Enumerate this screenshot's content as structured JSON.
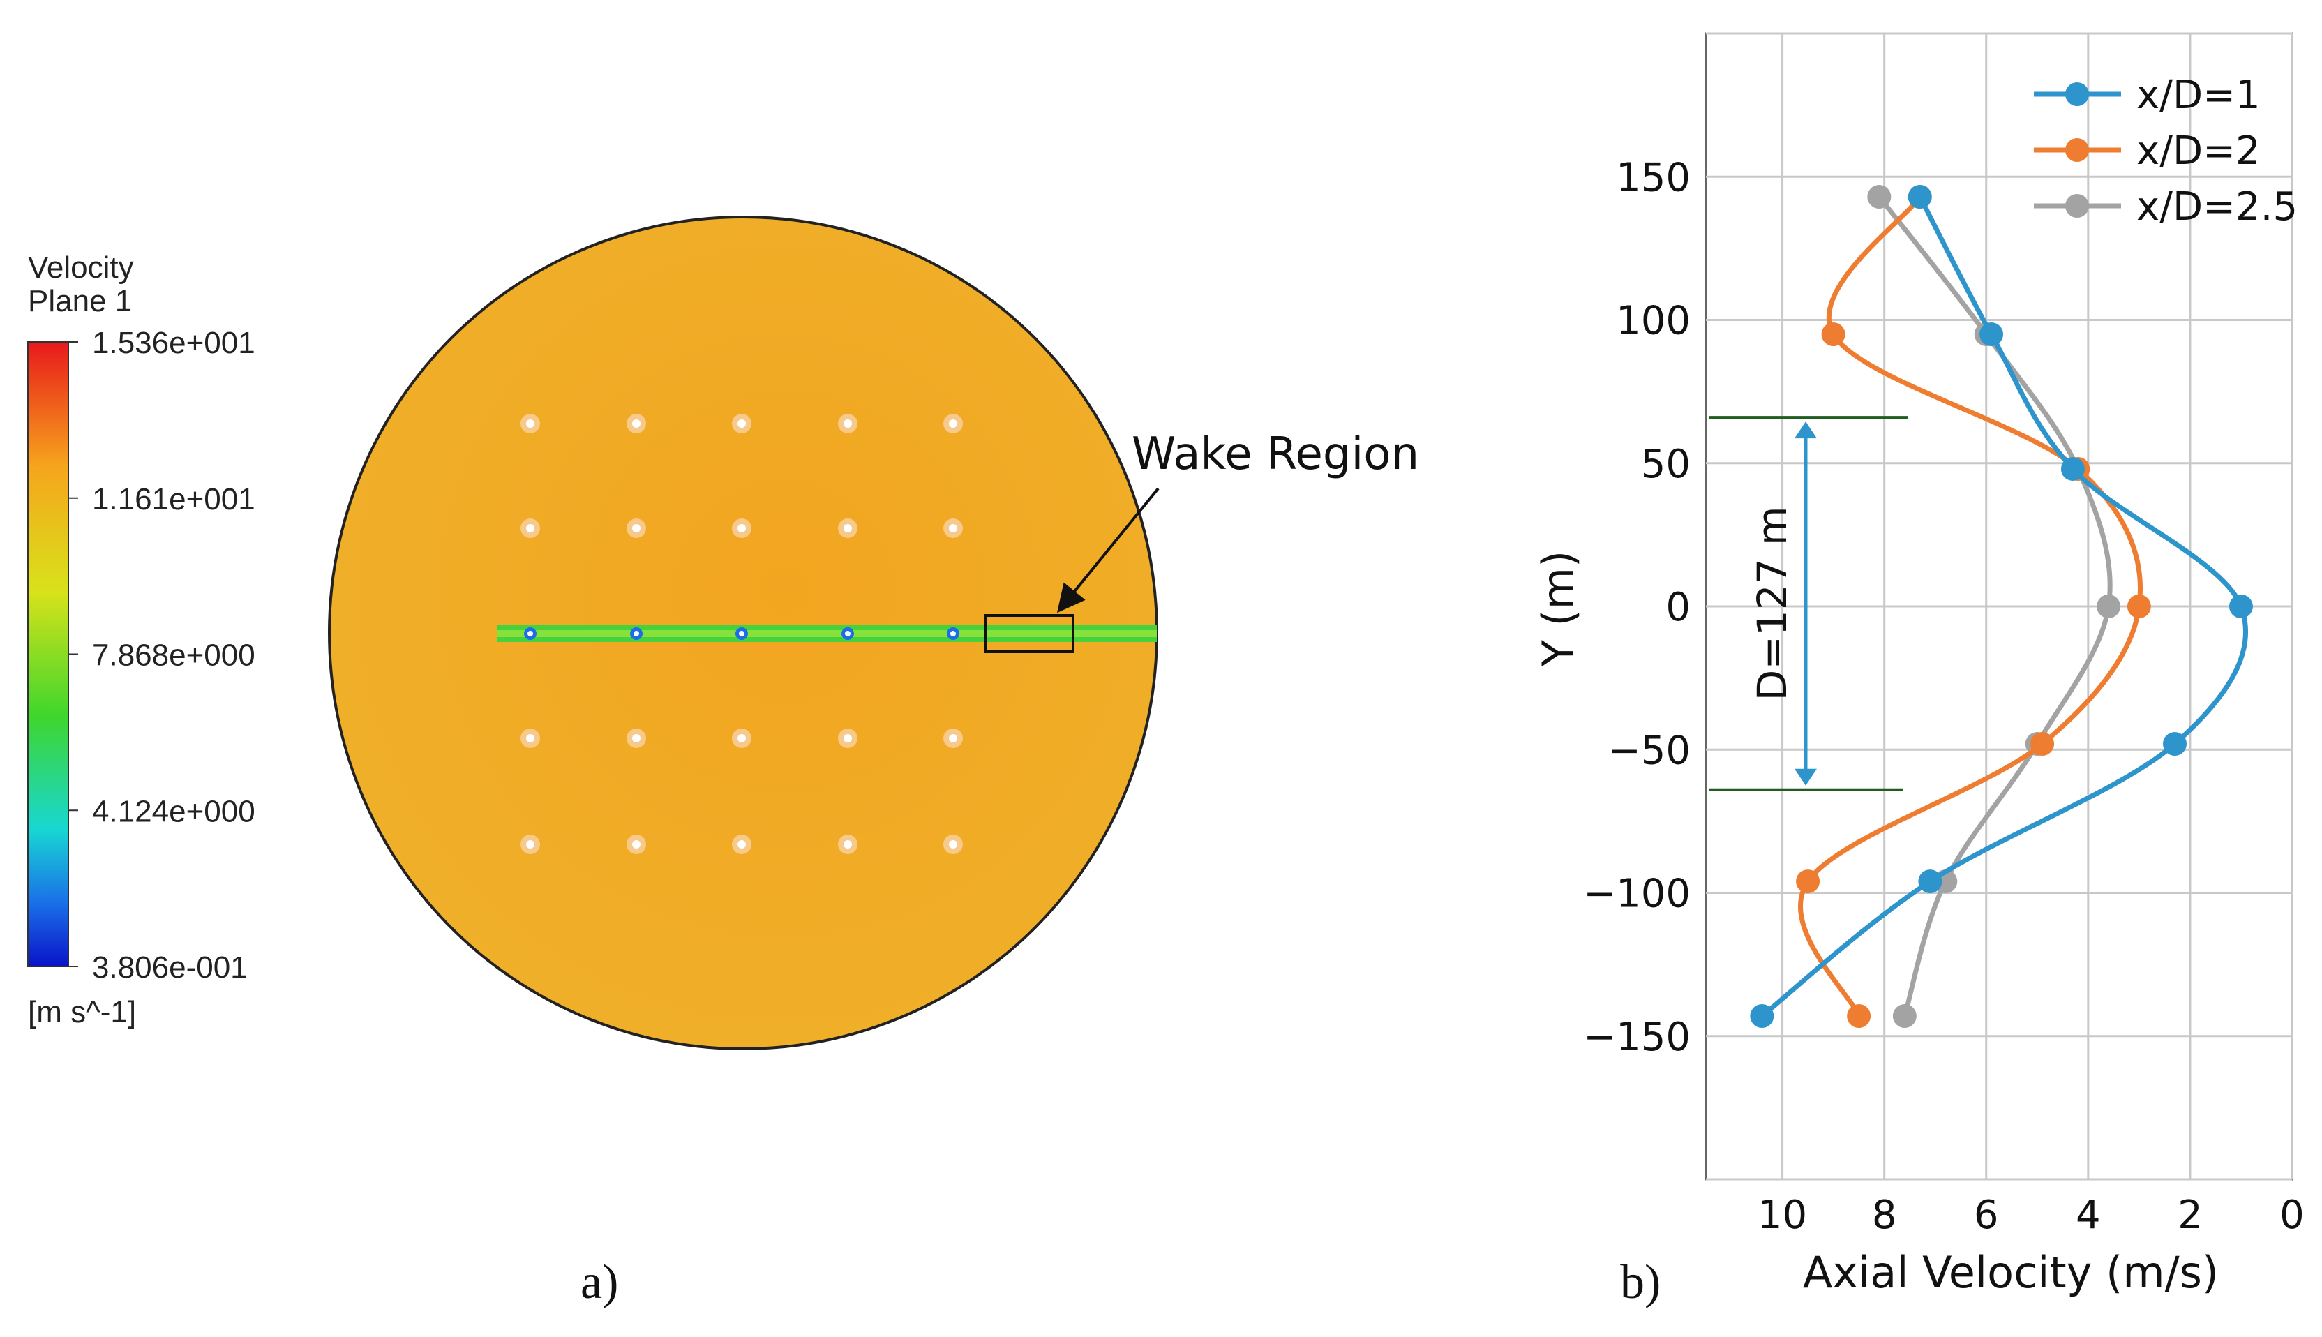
{
  "panel_a": {
    "label": "a)",
    "colorbar": {
      "title_line1": "Velocity",
      "title_line2": "Plane 1",
      "ticks": [
        "1.536e+001",
        "1.161e+001",
        "7.868e+000",
        "4.124e+000",
        "3.806e-001"
      ],
      "units": "[m s^-1]",
      "colors": [
        "#e8191c",
        "#f6a51c",
        "#d8e21a",
        "#3fd62d",
        "#18d7d2",
        "#1a6ee8",
        "#0a14c8"
      ]
    },
    "annotation": "Wake Region",
    "field_color": "#f2a71f",
    "wake_color": "#45d23c"
  },
  "panel_b": {
    "label": "b)",
    "annotation": "D=127 m",
    "colors": {
      "x1": "#2e95cc",
      "x2": "#ef7d31",
      "x25": "#a3a3a3",
      "grid": "#c8c8c8",
      "marker_line": "#1f5e1f"
    }
  },
  "chart_data": {
    "type": "line",
    "title": "",
    "xlabel": "Axial Velocity (m/s)",
    "ylabel": "Y (m)",
    "xlim": [
      0,
      11.5
    ],
    "x_reversed": true,
    "ylim": [
      -200,
      200
    ],
    "xticks": [
      10,
      8,
      6,
      4,
      2,
      0
    ],
    "yticks": [
      150,
      100,
      50,
      0,
      -50,
      -100,
      -150
    ],
    "ytick_labels": [
      "150",
      "100",
      "50",
      "0",
      "−50",
      "−100",
      "−150"
    ],
    "grid": true,
    "legend_position": "top-right",
    "diameter_marker": {
      "y_top": 66,
      "y_bottom": -64,
      "label": "D=127 m"
    },
    "series": [
      {
        "name": "x/D=1",
        "color": "#2e95cc",
        "points": [
          [
            7.3,
            143
          ],
          [
            5.9,
            95
          ],
          [
            4.3,
            48
          ],
          [
            1.0,
            0
          ],
          [
            2.3,
            -48
          ],
          [
            7.1,
            -96
          ],
          [
            10.4,
            -143
          ]
        ]
      },
      {
        "name": "x/D=2",
        "color": "#ef7d31",
        "points": [
          [
            7.3,
            143
          ],
          [
            9.0,
            95
          ],
          [
            4.2,
            48
          ],
          [
            3.0,
            0
          ],
          [
            4.9,
            -48
          ],
          [
            9.5,
            -96
          ],
          [
            8.5,
            -143
          ]
        ]
      },
      {
        "name": "x/D=2.5",
        "color": "#a3a3a3",
        "points": [
          [
            8.1,
            143
          ],
          [
            6.0,
            95
          ],
          [
            4.2,
            48
          ],
          [
            3.6,
            0
          ],
          [
            5.0,
            -48
          ],
          [
            6.8,
            -96
          ],
          [
            7.6,
            -143
          ]
        ]
      }
    ]
  }
}
